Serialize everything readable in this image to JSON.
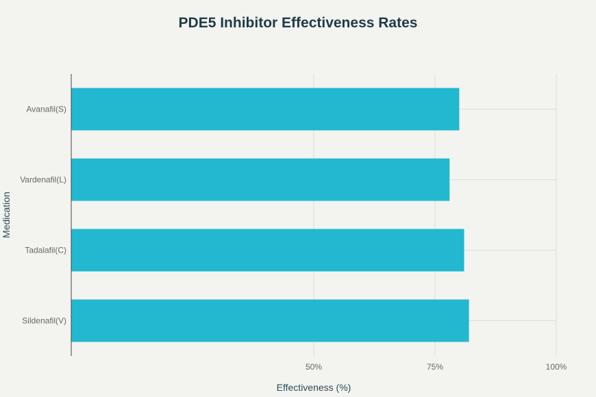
{
  "chart_data": {
    "type": "bar",
    "orientation": "horizontal",
    "title": "PDE5 Inhibitor Effectiveness Rates",
    "xlabel": "Effectiveness (%)",
    "ylabel": "Medication",
    "categories": [
      "Avanafil(S)",
      "Vardenafil(L)",
      "Tadalafil(C)",
      "Sildenafil(V)"
    ],
    "values": [
      80,
      78,
      81,
      82
    ],
    "xlim": [
      0,
      100
    ],
    "xticks": [
      {
        "value": 50,
        "label": "50%"
      },
      {
        "value": 75,
        "label": "75%"
      },
      {
        "value": 100,
        "label": "100%"
      }
    ],
    "grid": true,
    "bar_color": "#22b8cf"
  }
}
